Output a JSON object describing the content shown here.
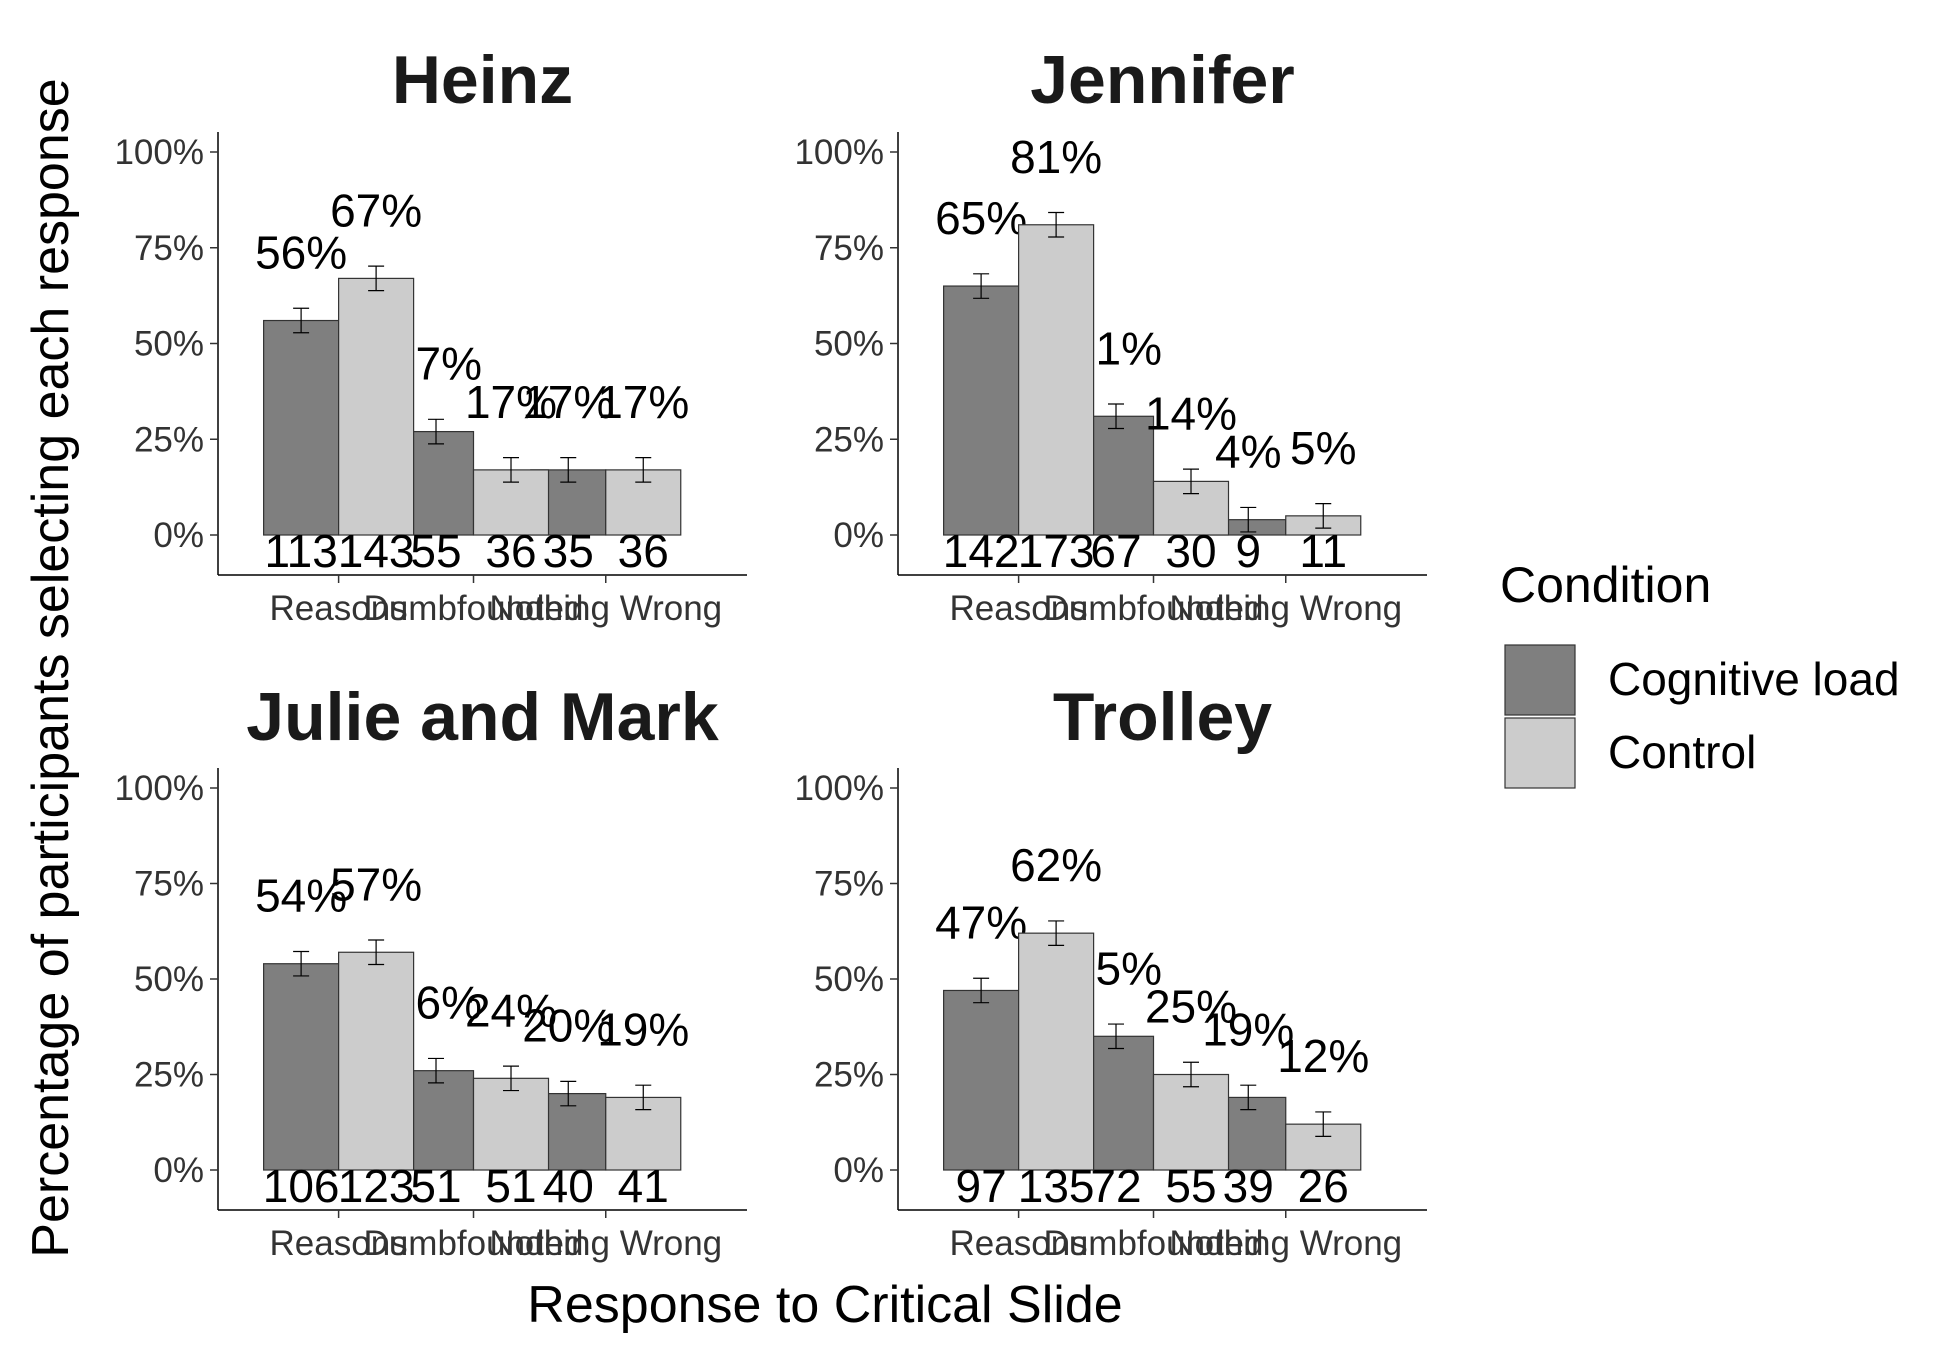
{
  "chart_data": {
    "type": "bar",
    "xlabel": "Response to Critical Slide",
    "ylabel": "Percentage of participants selecting each response",
    "ylim": [
      0,
      1
    ],
    "yticks": [
      "0%",
      "25%",
      "50%",
      "75%",
      "100%"
    ],
    "categories": [
      "Reasons",
      "Dumbfounded",
      "Nothing Wrong"
    ],
    "legend": {
      "title": "Condition",
      "position": "right",
      "items": [
        {
          "name": "Cognitive load",
          "color": "#7f7f7f"
        },
        {
          "name": "Control",
          "color": "#cccccc"
        }
      ]
    },
    "panels": [
      {
        "title": "Heinz",
        "series": [
          {
            "name": "Cognitive load",
            "values": [
              0.56,
              0.27,
              0.17
            ],
            "labels": [
              "56%",
              "27%",
              "17%"
            ],
            "counts": [
              "113",
              "55",
              "35"
            ]
          },
          {
            "name": "Control",
            "values": [
              0.67,
              0.17,
              0.17
            ],
            "labels": [
              "67%",
              "17%",
              "17%"
            ],
            "counts": [
              "143",
              "36",
              "36"
            ]
          }
        ]
      },
      {
        "title": "Jennifer",
        "series": [
          {
            "name": "Cognitive load",
            "values": [
              0.65,
              0.31,
              0.04
            ],
            "labels": [
              "65%",
              "31%",
              "4%"
            ],
            "counts": [
              "142",
              "67",
              "9"
            ]
          },
          {
            "name": "Control",
            "values": [
              0.81,
              0.14,
              0.05
            ],
            "labels": [
              "81%",
              "14%",
              "5%"
            ],
            "counts": [
              "173",
              "30",
              "11"
            ]
          }
        ]
      },
      {
        "title": "Julie and Mark",
        "series": [
          {
            "name": "Cognitive load",
            "values": [
              0.54,
              0.26,
              0.2
            ],
            "labels": [
              "54%",
              "26%",
              "20%"
            ],
            "counts": [
              "106",
              "51",
              "40"
            ]
          },
          {
            "name": "Control",
            "values": [
              0.57,
              0.24,
              0.19
            ],
            "labels": [
              "57%",
              "24%",
              "19%"
            ],
            "counts": [
              "123",
              "51",
              "41"
            ]
          }
        ]
      },
      {
        "title": "Trolley",
        "series": [
          {
            "name": "Cognitive load",
            "values": [
              0.47,
              0.35,
              0.19
            ],
            "labels": [
              "47%",
              "35%",
              "19%"
            ],
            "counts": [
              "97",
              "72",
              "39"
            ]
          },
          {
            "name": "Control",
            "values": [
              0.62,
              0.25,
              0.12
            ],
            "labels": [
              "62%",
              "25%",
              "12%"
            ],
            "counts": [
              "135",
              "55",
              "26"
            ]
          }
        ]
      }
    ]
  }
}
